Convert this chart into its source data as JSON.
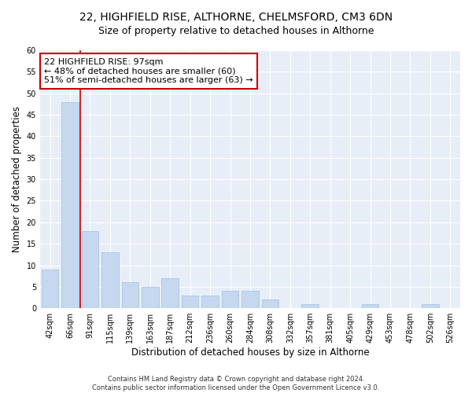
{
  "title1": "22, HIGHFIELD RISE, ALTHORNE, CHELMSFORD, CM3 6DN",
  "title2": "Size of property relative to detached houses in Althorne",
  "xlabel": "Distribution of detached houses by size in Althorne",
  "ylabel": "Number of detached properties",
  "categories": [
    "42sqm",
    "66sqm",
    "91sqm",
    "115sqm",
    "139sqm",
    "163sqm",
    "187sqm",
    "212sqm",
    "236sqm",
    "260sqm",
    "284sqm",
    "308sqm",
    "332sqm",
    "357sqm",
    "381sqm",
    "405sqm",
    "429sqm",
    "453sqm",
    "478sqm",
    "502sqm",
    "526sqm"
  ],
  "values": [
    9,
    48,
    18,
    13,
    6,
    5,
    7,
    3,
    3,
    4,
    4,
    2,
    0,
    1,
    0,
    0,
    1,
    0,
    0,
    1,
    0
  ],
  "bar_color": "#c5d8f0",
  "bar_edgecolor": "#9fbfdf",
  "reference_line_x": 1.5,
  "annotation_title": "22 HIGHFIELD RISE: 97sqm",
  "annotation_line1": "← 48% of detached houses are smaller (60)",
  "annotation_line2": "51% of semi-detached houses are larger (63) →",
  "annotation_box_facecolor": "#ffffff",
  "annotation_box_edgecolor": "#cc0000",
  "reference_line_color": "#cc0000",
  "ylim": [
    0,
    60
  ],
  "yticks": [
    0,
    5,
    10,
    15,
    20,
    25,
    30,
    35,
    40,
    45,
    50,
    55,
    60
  ],
  "footer1": "Contains HM Land Registry data © Crown copyright and database right 2024.",
  "footer2": "Contains public sector information licensed under the Open Government Licence v3.0.",
  "bg_color": "#ffffff",
  "plot_bg_color": "#e8eef8",
  "title1_fontsize": 10,
  "title2_fontsize": 9,
  "xlabel_fontsize": 8.5,
  "ylabel_fontsize": 8.5,
  "tick_fontsize": 7,
  "annotation_fontsize": 8,
  "footer_fontsize": 6
}
